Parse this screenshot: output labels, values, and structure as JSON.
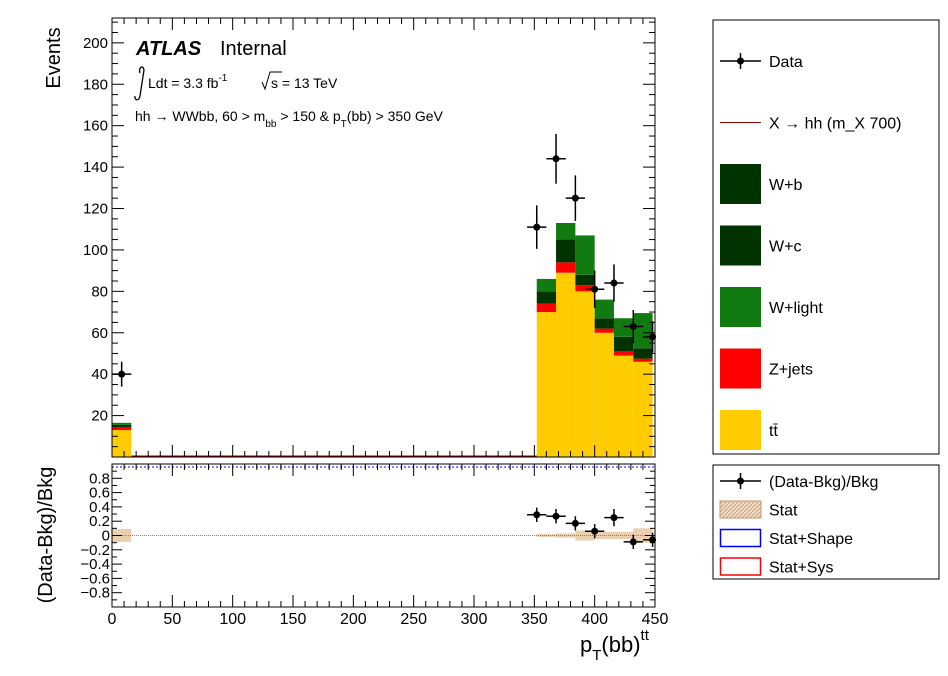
{
  "chart_data": {
    "type": "bar",
    "stacked": true,
    "x_unit": "GeV",
    "x_edges": [
      0,
      16,
      32,
      48,
      64,
      80,
      96,
      112,
      128,
      144,
      160,
      176,
      192,
      208,
      224,
      240,
      256,
      272,
      288,
      304,
      320,
      336,
      352,
      368,
      384,
      400,
      416,
      432,
      448
    ],
    "x_edges_note": "",
    "xlim": [
      0,
      450
    ],
    "xticks": [
      0,
      50,
      100,
      150,
      200,
      250,
      300,
      350,
      400,
      450
    ],
    "xlabel_main": "p",
    "xlabel_sub": "T",
    "xlabel_rest": "(bb)",
    "xlabel_sup": "tt",
    "main": {
      "ylabel": "Events",
      "ylim": [
        0,
        212
      ],
      "yticks": [
        20,
        40,
        60,
        80,
        100,
        120,
        140,
        160,
        180,
        200
      ],
      "stack": [
        {
          "name": "tt̄",
          "color": "#ffcc00",
          "values": [
            13,
            0,
            0,
            0,
            0,
            0,
            0,
            0,
            0,
            0,
            0,
            0,
            0,
            0,
            0,
            0,
            0,
            0,
            0,
            0,
            0,
            0,
            70,
            89,
            80,
            60,
            49,
            46,
            40
          ]
        },
        {
          "name": "Z+jets",
          "color": "#ff0000",
          "values": [
            1.5,
            0,
            0,
            0,
            0,
            0,
            0,
            0,
            0,
            0,
            0,
            0,
            0,
            0,
            0,
            0,
            0,
            0,
            0,
            0,
            0,
            0,
            4,
            5,
            3,
            2,
            2,
            1.5,
            1.5
          ]
        },
        {
          "name": "W+c",
          "color": "#003300",
          "values": [
            1,
            0,
            0,
            0,
            0,
            0,
            0,
            0,
            0,
            0,
            0,
            0,
            0,
            0,
            0,
            0,
            0,
            0,
            0,
            0,
            0,
            0,
            6,
            11,
            5,
            5,
            7,
            5,
            3
          ]
        },
        {
          "name": "W+light",
          "color": "#117a11",
          "values": [
            1,
            0,
            0,
            0,
            0,
            0,
            0,
            0,
            0,
            0,
            0,
            0,
            0,
            0,
            0,
            0,
            0,
            0,
            0,
            0,
            0,
            0,
            6,
            8,
            19,
            9,
            9,
            17,
            18
          ]
        }
      ],
      "data": {
        "name": "Data",
        "x": [
          8,
          352,
          368,
          384,
          400,
          416,
          432,
          448
        ],
        "y": [
          40,
          111,
          144,
          125,
          81,
          84,
          63,
          58
        ],
        "yerr": [
          6,
          10.5,
          12,
          11,
          9,
          9,
          8,
          7.6
        ]
      },
      "signal": {
        "name": "X → hh (m_X 700)",
        "color": "#8b0000"
      }
    },
    "ratio": {
      "ylabel": "(Data-Bkg)/Bkg",
      "ylim": [
        -1,
        1
      ],
      "yticks": [
        "0.8",
        "0.6",
        "0.4",
        "0.2",
        "0",
        "−0.2",
        "−0.4",
        "−0.6",
        "−0.8"
      ],
      "points": {
        "x": [
          352,
          368,
          384,
          400,
          416,
          432,
          448
        ],
        "y": [
          0.29,
          0.27,
          0.17,
          0.06,
          0.25,
          -0.09,
          -0.06
        ],
        "yerr": [
          0.1,
          0.1,
          0.1,
          0.1,
          0.12,
          0.1,
          0.1
        ]
      },
      "stat_band": [
        0.09,
        0,
        0,
        0,
        0,
        0,
        0,
        0,
        0,
        0,
        0,
        0,
        0,
        0,
        0,
        0,
        0,
        0,
        0,
        0,
        0,
        0,
        0.02,
        0.03,
        0.07,
        0.05,
        0.05,
        0.1,
        0.12
      ],
      "stat_color": "#e6c8a0"
    },
    "annotations": {
      "experiment": "ATLAS",
      "status": "Internal",
      "lumi_pre": "Ldt = 3.3 fb",
      "lumi_sup": "-1",
      "energy": "s = 13 TeV",
      "selection_pre": "hh →  WWbb, 60 > m",
      "selection_sub1": "bb",
      "selection_mid": " > 150 & p",
      "selection_sub2": "T",
      "selection_post": "(bb) > 350 GeV"
    },
    "legend_main": [
      {
        "label": "Data",
        "kind": "marker"
      },
      {
        "label": "X → hh (m_X 700)",
        "kind": "line",
        "color": "#8b0000"
      },
      {
        "label": "W+b",
        "kind": "box",
        "color": "#003300"
      },
      {
        "label": "W+c",
        "kind": "box",
        "color": "#003300"
      },
      {
        "label": "W+light",
        "kind": "box",
        "color": "#117a11"
      },
      {
        "label": "Z+jets",
        "kind": "box",
        "color": "#ff0000"
      },
      {
        "label": "tt̄",
        "kind": "box",
        "color": "#ffcc00"
      }
    ],
    "legend_ratio": [
      {
        "label": "(Data-Bkg)/Bkg",
        "kind": "marker"
      },
      {
        "label": "Stat",
        "kind": "hatch",
        "color": "#e6c8a0"
      },
      {
        "label": "Stat+Shape",
        "kind": "outline",
        "color": "#0000ff"
      },
      {
        "label": "Stat+Sys",
        "kind": "outline",
        "color": "#ff0000"
      }
    ]
  }
}
